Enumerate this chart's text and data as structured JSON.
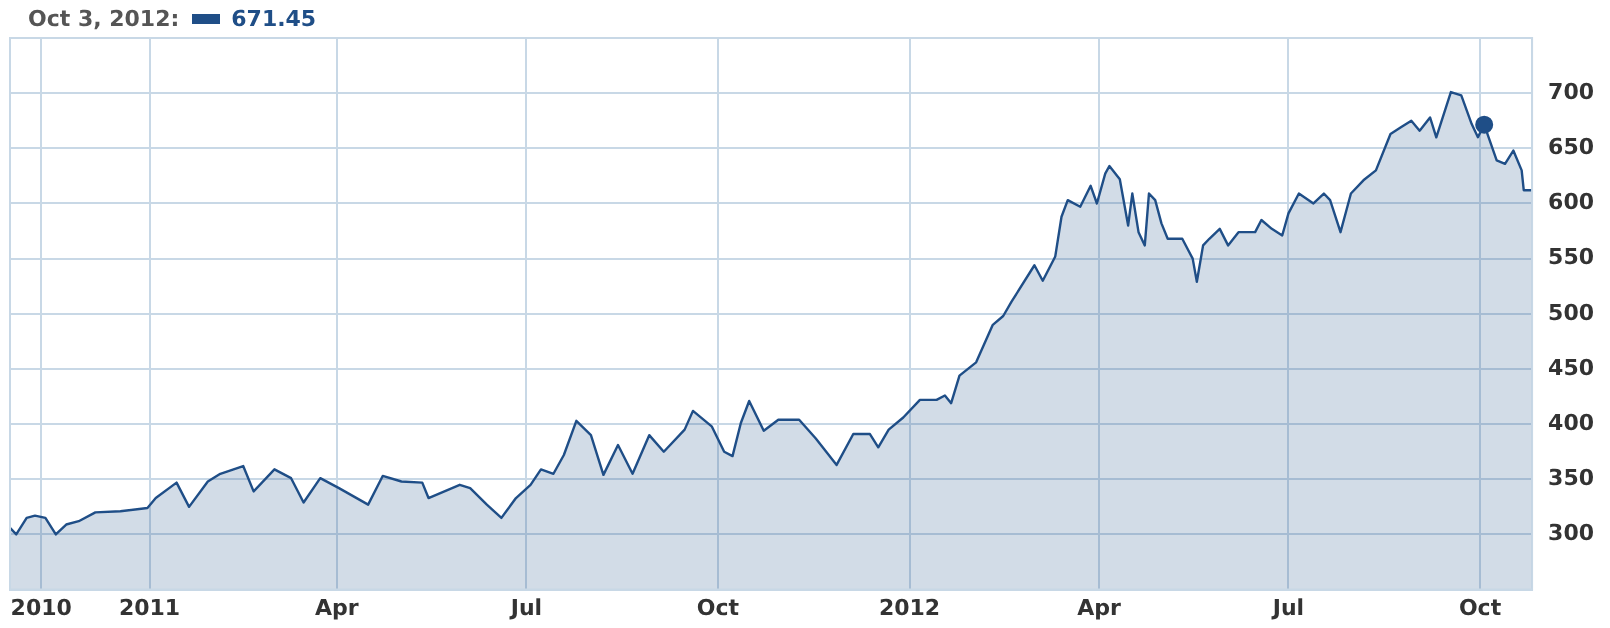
{
  "chart_data": {
    "type": "area",
    "annotations": [
      "Oct 3, 2012:",
      "671.45"
    ],
    "xlim": [
      "2010-10-26",
      "2012-10-26"
    ],
    "xticks": [
      {
        "value": "2010-11-10",
        "label": "2010"
      },
      {
        "value": "2011-01-01",
        "label": "2011"
      },
      {
        "value": "2011-04-01",
        "label": "Apr"
      },
      {
        "value": "2011-07-01",
        "label": "Jul"
      },
      {
        "value": "2011-10-01",
        "label": "Oct"
      },
      {
        "value": "2012-01-01",
        "label": "2012"
      },
      {
        "value": "2012-04-01",
        "label": "Apr"
      },
      {
        "value": "2012-07-01",
        "label": "Jul"
      },
      {
        "value": "2012-10-01",
        "label": "Oct"
      }
    ],
    "ylim": [
      250,
      750
    ],
    "yticks": [
      300,
      350,
      400,
      450,
      500,
      550,
      600,
      650,
      700
    ],
    "grid": true,
    "legend": false,
    "series": [
      {
        "color": "#1f4e87",
        "x": [
          "2010-10-26",
          "2010-10-29",
          "2010-11-03",
          "2010-11-07",
          "2010-11-12",
          "2010-11-17",
          "2010-11-22",
          "2010-11-28",
          "2010-12-06",
          "2010-12-18",
          "2010-12-31",
          "2011-01-04",
          "2011-01-14",
          "2011-01-20",
          "2011-01-29",
          "2011-02-04",
          "2011-02-15",
          "2011-02-20",
          "2011-03-02",
          "2011-03-10",
          "2011-03-16",
          "2011-03-24",
          "2011-04-02",
          "2011-04-16",
          "2011-04-23",
          "2011-05-02",
          "2011-05-12",
          "2011-05-15",
          "2011-05-30",
          "2011-06-04",
          "2011-06-12",
          "2011-06-19",
          "2011-06-26",
          "2011-07-03",
          "2011-07-08",
          "2011-07-14",
          "2011-07-19",
          "2011-07-25",
          "2011-08-01",
          "2011-08-07",
          "2011-08-14",
          "2011-08-21",
          "2011-08-29",
          "2011-09-05",
          "2011-09-15",
          "2011-09-19",
          "2011-09-28",
          "2011-10-04",
          "2011-10-08",
          "2011-10-12",
          "2011-10-16",
          "2011-10-23",
          "2011-10-30",
          "2011-11-09",
          "2011-11-17",
          "2011-11-27",
          "2011-12-05",
          "2011-12-13",
          "2011-12-17",
          "2011-12-22",
          "2011-12-29",
          "2012-01-06",
          "2012-01-14",
          "2012-01-18",
          "2012-01-21",
          "2012-01-25",
          "2012-02-02",
          "2012-02-10",
          "2012-02-15",
          "2012-02-19",
          "2012-03-01",
          "2012-03-05",
          "2012-03-11",
          "2012-03-14",
          "2012-03-17",
          "2012-03-23",
          "2012-03-28",
          "2012-03-31",
          "2012-04-04",
          "2012-04-06",
          "2012-04-11",
          "2012-04-15",
          "2012-04-17",
          "2012-04-20",
          "2012-04-23",
          "2012-04-25",
          "2012-04-28",
          "2012-05-01",
          "2012-05-04",
          "2012-05-11",
          "2012-05-16",
          "2012-05-18",
          "2012-05-21",
          "2012-05-24",
          "2012-05-29",
          "2012-06-02",
          "2012-06-07",
          "2012-06-15",
          "2012-06-18",
          "2012-06-23",
          "2012-06-28",
          "2012-07-01",
          "2012-07-06",
          "2012-07-13",
          "2012-07-18",
          "2012-07-21",
          "2012-07-26",
          "2012-07-31",
          "2012-08-06",
          "2012-08-12",
          "2012-08-19",
          "2012-08-24",
          "2012-08-29",
          "2012-09-02",
          "2012-09-07",
          "2012-09-10",
          "2012-09-17",
          "2012-09-22",
          "2012-09-27",
          "2012-09-30",
          "2012-10-03",
          "2012-10-09",
          "2012-10-13",
          "2012-10-17",
          "2012-10-21",
          "2012-10-22",
          "2012-10-26"
        ],
        "values": [
          306,
          300,
          315,
          317,
          315,
          300,
          309,
          312,
          320,
          321,
          324,
          333,
          347,
          325,
          348,
          355,
          362,
          339,
          359,
          351,
          329,
          351,
          342,
          327,
          353,
          348,
          347,
          333,
          345,
          342,
          327,
          315,
          333,
          345,
          359,
          355,
          372,
          403,
          390,
          354,
          381,
          355,
          390,
          375,
          395,
          412,
          398,
          375,
          371,
          401,
          421,
          394,
          404,
          404,
          387,
          363,
          391,
          391,
          379,
          395,
          406,
          422,
          422,
          426,
          419,
          444,
          456,
          490,
          498,
          511,
          544,
          530,
          552,
          588,
          603,
          597,
          616,
          600,
          627,
          634,
          622,
          580,
          609,
          574,
          562,
          609,
          603,
          582,
          568,
          568,
          550,
          529,
          562,
          568,
          577,
          562,
          574,
          574,
          585,
          577,
          571,
          591,
          609,
          600,
          609,
          603,
          574,
          609,
          621,
          630,
          663,
          669,
          675,
          666,
          678,
          660,
          701,
          698,
          672,
          660,
          671.45,
          639,
          636,
          648,
          630,
          612,
          612
        ]
      },
      {
        "type": "scatter",
        "color": "#1f4e87",
        "marker": "circle",
        "x": [
          "2012-10-03"
        ],
        "values": [
          671.45
        ]
      }
    ]
  }
}
